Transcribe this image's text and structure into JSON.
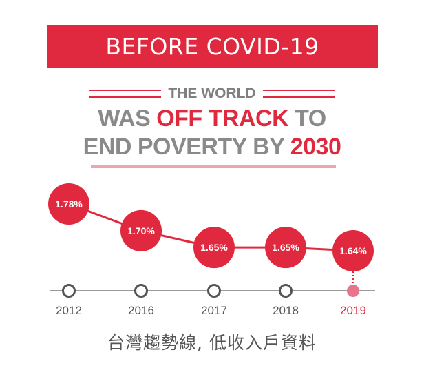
{
  "banner": {
    "title": "BEFORE COVID-19"
  },
  "headline": {
    "kicker": "THE WORLD",
    "line1_prefix": "WAS ",
    "line1_highlight": "OFF TRACK",
    "line1_suffix": " TO",
    "line2_prefix": "END POVERTY BY ",
    "line2_highlight": "2030"
  },
  "colors": {
    "accent": "#e0293f",
    "gray_text": "#8a8a8a",
    "timeline_gray": "#555555",
    "rule_pink": "#f2a3b1"
  },
  "chart_data": {
    "type": "line",
    "categories": [
      "2012",
      "2016",
      "2017",
      "2018",
      "2019"
    ],
    "values": [
      1.78,
      1.7,
      1.65,
      1.65,
      1.64
    ],
    "data_labels": [
      "1.78%",
      "1.70%",
      "1.65%",
      "1.65%",
      "1.64%"
    ],
    "highlight_category": "2019",
    "title": "",
    "xlabel": "",
    "ylabel": "",
    "grid": false
  },
  "footnote": "台灣趨勢線, 低收入戶資料"
}
